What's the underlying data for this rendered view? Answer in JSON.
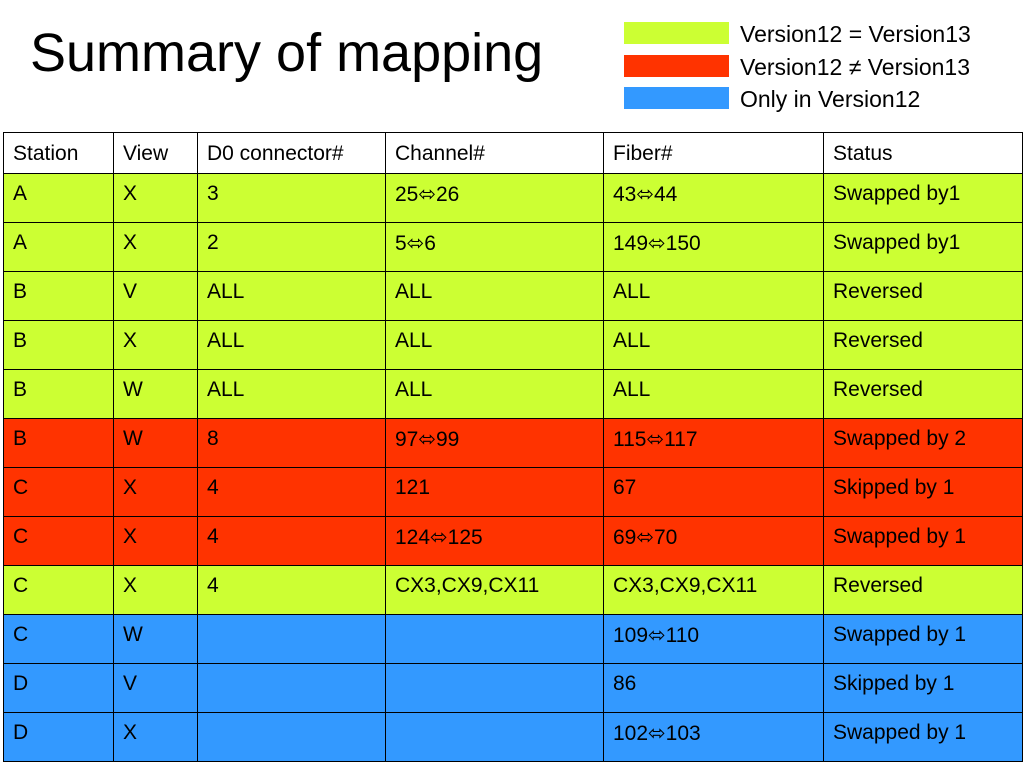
{
  "title": "Summary of mapping",
  "legend": [
    {
      "label": "Version12 = Version13",
      "color": "#ccff33"
    },
    {
      "label": "Version12 ≠ Version13",
      "color": "#ff3300"
    },
    {
      "label": "Only in Version12",
      "color": "#3399ff"
    }
  ],
  "table": {
    "headers": [
      "Station",
      "View",
      "D0 connector#",
      "Channel#",
      "Fiber#",
      "Status"
    ],
    "rows": [
      {
        "category": "same",
        "cells": [
          "A",
          "X",
          "3",
          "25⬄26",
          "43⬄44",
          "Swapped by1"
        ]
      },
      {
        "category": "same",
        "cells": [
          "A",
          "X",
          "2",
          "5⬄6",
          "149⬄150",
          "Swapped by1"
        ]
      },
      {
        "category": "same",
        "cells": [
          "B",
          "V",
          "ALL",
          "ALL",
          "ALL",
          "Reversed"
        ]
      },
      {
        "category": "same",
        "cells": [
          "B",
          "X",
          "ALL",
          "ALL",
          "ALL",
          "Reversed"
        ]
      },
      {
        "category": "same",
        "cells": [
          "B",
          "W",
          "ALL",
          "ALL",
          "ALL",
          "Reversed"
        ]
      },
      {
        "category": "diff",
        "cells": [
          "B",
          "W",
          "8",
          "97⬄99",
          "115⬄117",
          "Swapped by 2"
        ]
      },
      {
        "category": "diff",
        "cells": [
          "C",
          "X",
          "4",
          "121",
          "67",
          "Skipped by 1"
        ]
      },
      {
        "category": "diff",
        "cells": [
          "C",
          "X",
          "4",
          "124⬄125",
          "69⬄70",
          "Swapped by 1"
        ]
      },
      {
        "category": "same",
        "cells": [
          "C",
          "X",
          "4",
          "CX3,CX9,CX11",
          "CX3,CX9,CX11",
          "Reversed"
        ]
      },
      {
        "category": "only",
        "cells": [
          "C",
          "W",
          "",
          "",
          "109⬄110",
          "Swapped by 1"
        ]
      },
      {
        "category": "only",
        "cells": [
          "D",
          "V",
          "",
          "",
          "86",
          "Skipped by 1"
        ]
      },
      {
        "category": "only",
        "cells": [
          "D",
          "X",
          "",
          "",
          "102⬄103",
          "Swapped by 1"
        ]
      }
    ]
  }
}
